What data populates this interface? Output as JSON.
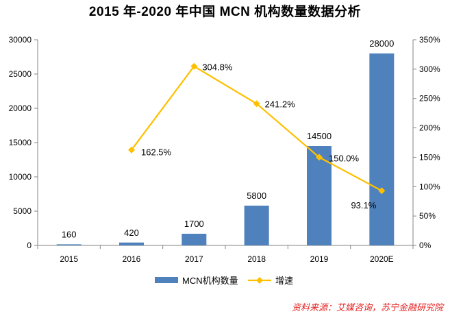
{
  "chart_data": {
    "type": "bar+line",
    "title": "2015 年-2020 年中国 MCN 机构数量数据分析",
    "categories": [
      "2015",
      "2016",
      "2017",
      "2018",
      "2019",
      "2020E"
    ],
    "series": [
      {
        "name": "MCN机构数量",
        "type": "bar",
        "axis": "left",
        "color": "#4f81bd",
        "values": [
          160,
          420,
          1700,
          5800,
          14500,
          28000
        ],
        "labels": [
          "160",
          "420",
          "1700",
          "5800",
          "14500",
          "28000"
        ]
      },
      {
        "name": "增速",
        "type": "line",
        "axis": "right",
        "color": "#ffc000",
        "values": [
          null,
          162.5,
          304.8,
          241.2,
          150.0,
          93.1
        ],
        "labels": [
          "",
          "162.5%",
          "304.8%",
          "241.2%",
          "150.0%",
          "93.1%"
        ]
      }
    ],
    "y_left": {
      "min": 0,
      "max": 30000,
      "ticks": [
        "0",
        "5000",
        "10000",
        "15000",
        "20000",
        "25000",
        "30000"
      ]
    },
    "y_right": {
      "min": 0,
      "max": 350,
      "ticks": [
        "0%",
        "50%",
        "100%",
        "150%",
        "200%",
        "250%",
        "300%",
        "350%"
      ]
    },
    "grid": false,
    "legend": "bottom"
  },
  "source": "资料来源：艾媒咨询，苏宁金融研究院"
}
